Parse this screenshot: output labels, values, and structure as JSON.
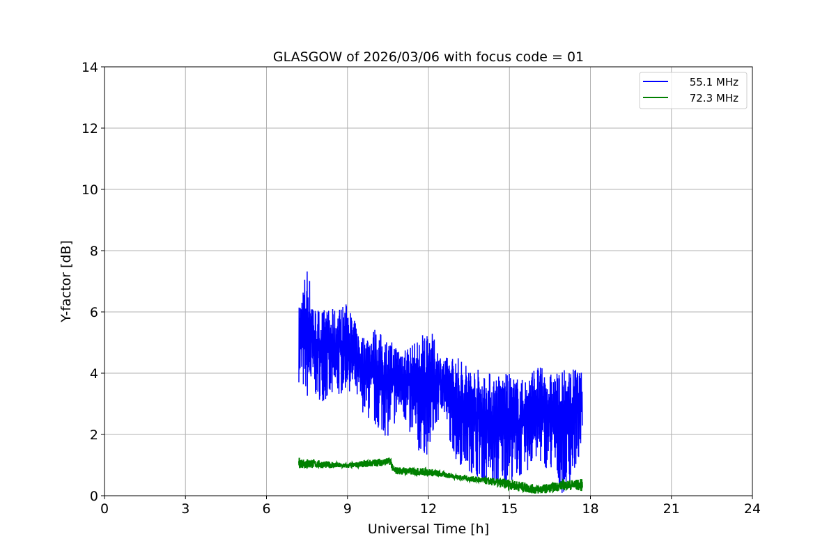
{
  "chart_data": {
    "type": "line",
    "title": "GLASGOW of 2026/03/06 with focus code = 01",
    "xlabel": "Universal Time [h]",
    "ylabel": "Y-factor [dB]",
    "xlim": [
      0,
      24
    ],
    "ylim": [
      0,
      14
    ],
    "xticks": [
      0,
      3,
      6,
      9,
      12,
      15,
      18,
      21,
      24
    ],
    "yticks": [
      0,
      2,
      4,
      6,
      8,
      10,
      12,
      14
    ],
    "grid": true,
    "legend_position": "top-right",
    "series": [
      {
        "name": "55.1 MHz",
        "color": "#0000ff",
        "envelope_x_low_high": [
          [
            7.2,
            3.7,
            6.2
          ],
          [
            7.5,
            3.1,
            7.6
          ],
          [
            7.8,
            3.2,
            6.2
          ],
          [
            8.0,
            3.1,
            6.1
          ],
          [
            8.5,
            3.0,
            6.1
          ],
          [
            9.0,
            3.5,
            6.3
          ],
          [
            9.5,
            2.8,
            5.2
          ],
          [
            10.0,
            2.2,
            5.5
          ],
          [
            10.5,
            1.9,
            5.1
          ],
          [
            11.0,
            2.7,
            4.9
          ],
          [
            11.5,
            1.4,
            5.0
          ],
          [
            12.0,
            1.3,
            5.6
          ],
          [
            12.5,
            2.8,
            4.5
          ],
          [
            13.0,
            1.1,
            4.6
          ],
          [
            13.5,
            0.8,
            4.3
          ],
          [
            14.0,
            0.5,
            4.1
          ],
          [
            14.5,
            0.2,
            4.0
          ],
          [
            15.0,
            0.5,
            4.0
          ],
          [
            15.5,
            0.6,
            3.8
          ],
          [
            16.0,
            1.1,
            4.3
          ],
          [
            16.5,
            0.8,
            4.0
          ],
          [
            17.0,
            0.0,
            4.1
          ],
          [
            17.5,
            0.9,
            4.2
          ],
          [
            17.7,
            1.6,
            4.0
          ]
        ]
      },
      {
        "name": "72.3 MHz",
        "color": "#008000",
        "envelope_x_low_high": [
          [
            7.2,
            0.9,
            1.25
          ],
          [
            8.0,
            0.9,
            1.15
          ],
          [
            9.0,
            0.9,
            1.05
          ],
          [
            10.0,
            0.95,
            1.2
          ],
          [
            10.6,
            1.0,
            1.25
          ],
          [
            10.7,
            0.7,
            0.95
          ],
          [
            12.0,
            0.65,
            0.9
          ],
          [
            13.0,
            0.55,
            0.7
          ],
          [
            14.0,
            0.4,
            0.6
          ],
          [
            15.0,
            0.2,
            0.55
          ],
          [
            16.0,
            0.05,
            0.35
          ],
          [
            16.5,
            0.1,
            0.4
          ],
          [
            17.0,
            0.2,
            0.5
          ],
          [
            17.7,
            0.15,
            0.55
          ]
        ]
      }
    ]
  }
}
